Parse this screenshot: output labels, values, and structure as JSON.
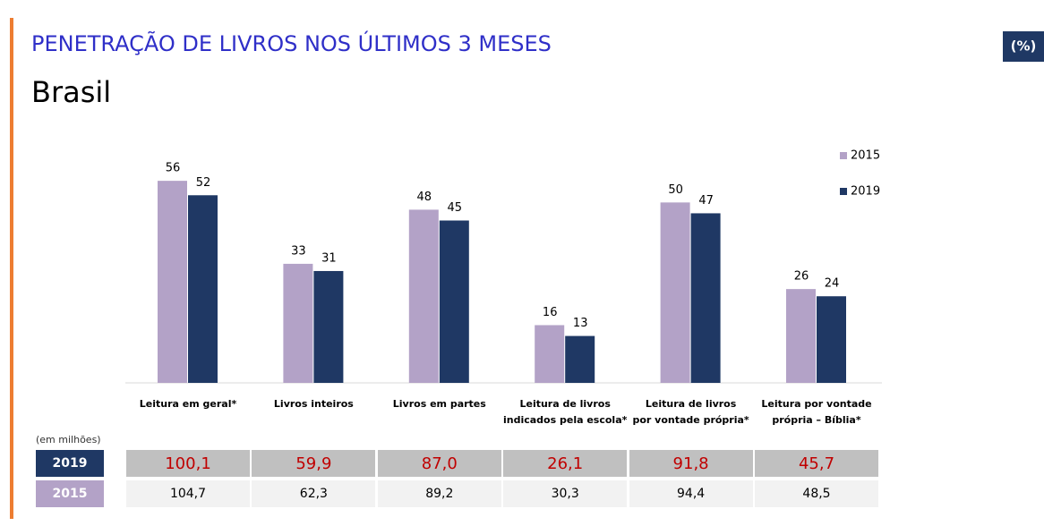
{
  "chart_data": {
    "type": "bar",
    "title": "PENETRAÇÃO DE LIVROS NOS ÚLTIMOS 3 MESES",
    "subtitle": "Brasil",
    "unit": "(%)",
    "categories": [
      "Leitura em geral*",
      "Livros inteiros",
      "Livros em partes",
      "Leitura de livros\nindicados pela escola*",
      "Leitura de livros\npor vontade própria*",
      "Leitura por vontade\nprópria – Bíblia*"
    ],
    "series": [
      {
        "name": "2015",
        "color": "#b3a2c7",
        "values": [
          56,
          33,
          48,
          16,
          50,
          26
        ]
      },
      {
        "name": "2019",
        "color": "#1f3864",
        "values": [
          52,
          31,
          45,
          13,
          47,
          24
        ]
      }
    ],
    "ylim": [
      0,
      60
    ],
    "legend": "top-right"
  },
  "table": {
    "note": "(em milhões)",
    "rows": [
      [
        "2019",
        "100,1",
        "59,9",
        "87,0",
        "26,1",
        "91,8",
        "45,7"
      ],
      [
        "2015",
        "104,7",
        "62,3",
        "89,2",
        "30,3",
        "94,4",
        "48,5"
      ]
    ]
  }
}
